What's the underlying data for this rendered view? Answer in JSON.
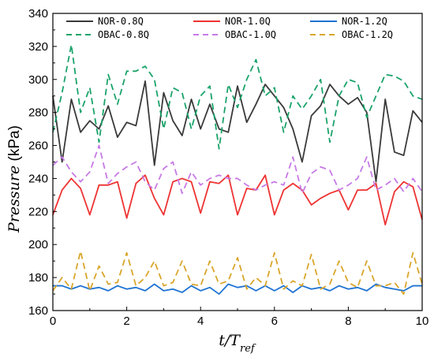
{
  "chart_data": {
    "type": "line",
    "xlabel_main": "t/T",
    "xlabel_sub": "ref",
    "ylabel_italic": "Pressure",
    "ylabel_unit": " (kPa)",
    "xlim": [
      0,
      10
    ],
    "ylim": [
      160,
      340
    ],
    "xticks": [
      0,
      2,
      4,
      6,
      8,
      10
    ],
    "yticks": [
      160,
      180,
      200,
      220,
      240,
      260,
      280,
      300,
      320,
      340
    ],
    "grid": false,
    "legend": "top",
    "x": [
      0,
      0.25,
      0.5,
      0.75,
      1,
      1.25,
      1.5,
      1.75,
      2,
      2.25,
      2.5,
      2.75,
      3,
      3.25,
      3.5,
      3.75,
      4,
      4.25,
      4.5,
      4.75,
      5,
      5.25,
      5.5,
      5.75,
      6,
      6.25,
      6.5,
      6.75,
      7,
      7.25,
      7.5,
      7.75,
      8,
      8.25,
      8.5,
      8.75,
      9,
      9.25,
      9.5,
      9.75,
      10
    ],
    "series": [
      {
        "name": "NOR-0.8Q",
        "color": "#3a3a3a",
        "dash": "solid",
        "values": [
          290,
          250,
          288,
          268,
          275,
          270,
          284,
          265,
          274,
          272,
          299,
          248,
          292,
          275,
          266,
          288,
          270,
          285,
          270,
          268,
          296,
          274,
          285,
          297,
          290,
          283,
          270,
          250,
          278,
          284,
          297,
          290,
          285,
          289,
          280,
          238,
          288,
          256,
          254,
          281,
          274
        ]
      },
      {
        "name": "NOR-1.0Q",
        "color": "#ee3333",
        "dash": "solid",
        "values": [
          218,
          233,
          240,
          234,
          218,
          236,
          236,
          238,
          216,
          237,
          242,
          228,
          218,
          238,
          240,
          238,
          219,
          238,
          237,
          242,
          218,
          234,
          233,
          242,
          218,
          233,
          237,
          233,
          224,
          228,
          231,
          233,
          221,
          233,
          233,
          237,
          212,
          232,
          238,
          235,
          215
        ]
      },
      {
        "name": "NOR-1.2Q",
        "color": "#1e73d2",
        "dash": "solid",
        "values": [
          175,
          175,
          173,
          175,
          173,
          174,
          172,
          175,
          173,
          174,
          172,
          176,
          172,
          173,
          171,
          175,
          172,
          174,
          170,
          176,
          174,
          175,
          172,
          175,
          172,
          175,
          171,
          175,
          173,
          174,
          172,
          175,
          173,
          174,
          172,
          176,
          174,
          173,
          172,
          175,
          175
        ]
      },
      {
        "name": "OBAC-0.8Q",
        "color": "#1aa36a",
        "dash": "8,5",
        "values": [
          268,
          292,
          321,
          280,
          295,
          262,
          303,
          285,
          305,
          305,
          308,
          300,
          270,
          295,
          292,
          270,
          290,
          296,
          258,
          297,
          283,
          300,
          312,
          290,
          295,
          268,
          290,
          282,
          290,
          300,
          262,
          290,
          300,
          298,
          277,
          290,
          303,
          302,
          299,
          290,
          288
        ]
      },
      {
        "name": "OBAC-1.0Q",
        "color": "#c77ae6",
        "dash": "8,5",
        "values": [
          248,
          253,
          244,
          238,
          244,
          260,
          237,
          243,
          247,
          250,
          238,
          233,
          246,
          250,
          231,
          244,
          236,
          240,
          242,
          240,
          240,
          236,
          233,
          236,
          238,
          236,
          253,
          231,
          243,
          247,
          245,
          233,
          236,
          240,
          253,
          233,
          236,
          240,
          232,
          240,
          232
        ]
      },
      {
        "name": "OBAC-1.2Q",
        "color": "#d9a62b",
        "dash": "8,5",
        "values": [
          172,
          180,
          173,
          196,
          172,
          187,
          176,
          177,
          195,
          175,
          180,
          190,
          175,
          177,
          190,
          176,
          175,
          190,
          176,
          178,
          192,
          173,
          180,
          175,
          195,
          173,
          178,
          175,
          194,
          173,
          176,
          190,
          177,
          174,
          190,
          175,
          175,
          177,
          170,
          195,
          176
        ]
      }
    ]
  }
}
